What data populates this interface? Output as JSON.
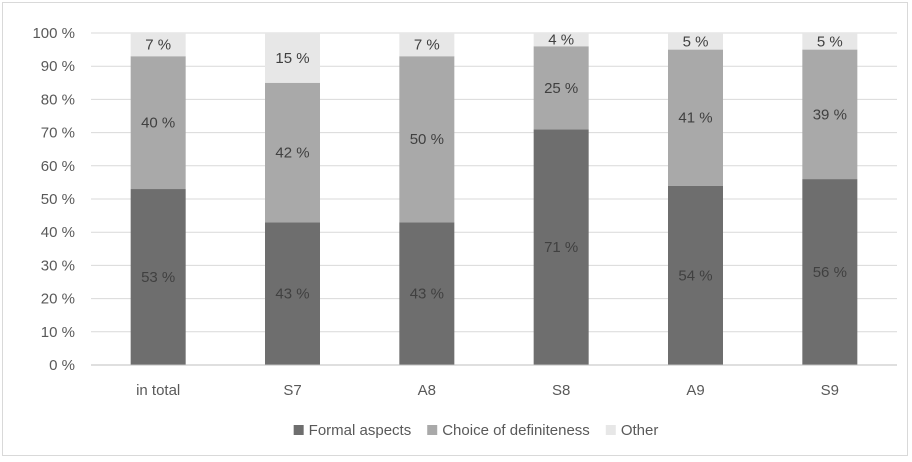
{
  "chart_data": {
    "type": "bar",
    "stacked": true,
    "title": "",
    "xlabel": "",
    "ylabel": "",
    "ylim": [
      0,
      100
    ],
    "y_ticks": [
      0,
      10,
      20,
      30,
      40,
      50,
      60,
      70,
      80,
      90,
      100
    ],
    "y_tick_labels": [
      "0 %",
      "10 %",
      "20 %",
      "30 %",
      "40 %",
      "50 %",
      "60 %",
      "70 %",
      "80 %",
      "90 %",
      "100 %"
    ],
    "grid": true,
    "legend_position": "bottom",
    "categories": [
      "in total",
      "S7",
      "A8",
      "S8",
      "A9",
      "S9"
    ],
    "series": [
      {
        "name": "Formal aspects",
        "color": "#6e6e6e",
        "values": [
          53,
          43,
          43,
          71,
          54,
          56
        ],
        "labels": [
          "53 %",
          "43 %",
          "43 %",
          "71 %",
          "54 %",
          "56 %"
        ]
      },
      {
        "name": "Choice of definiteness",
        "color": "#a9a9a9",
        "values": [
          40,
          42,
          50,
          25,
          41,
          39
        ],
        "labels": [
          "40 %",
          "42 %",
          "50 %",
          "25 %",
          "41 %",
          "39 %"
        ]
      },
      {
        "name": "Other",
        "color": "#e7e7e7",
        "values": [
          7,
          15,
          7,
          4,
          5,
          5
        ],
        "labels": [
          "7 %",
          "15 %",
          "7 %",
          "4 %",
          "5 %",
          "5 %"
        ]
      }
    ]
  }
}
